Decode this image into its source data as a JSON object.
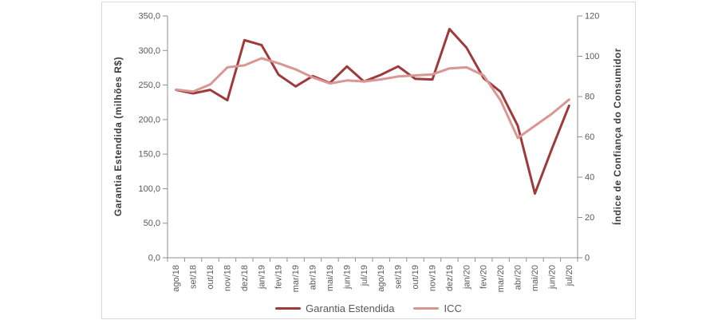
{
  "page": {
    "background": "#ffffff",
    "frame_border_color": "#d9d9d9",
    "axis_line_color": "#8f8f8f",
    "tick_text_color": "#595959"
  },
  "chart_data": {
    "type": "line",
    "categories": [
      "ago/18",
      "set/18",
      "out/18",
      "nov/18",
      "dez/18",
      "jan/19",
      "fev/19",
      "mar/19",
      "abr/19",
      "mai/19",
      "jun/19",
      "jul/19",
      "ago/19",
      "set/19",
      "out/19",
      "nov/19",
      "dez/19",
      "jan/20",
      "fev/20",
      "mar/20",
      "abr/20",
      "mai/20",
      "jun/20",
      "jul/20"
    ],
    "series": [
      {
        "name": "Garantia Estendida",
        "axis": "left",
        "color": "#9e3a39",
        "values": [
          243,
          238,
          243,
          228,
          315,
          308,
          265,
          248,
          263,
          253,
          277,
          255,
          265,
          277,
          259,
          258,
          331,
          304,
          260,
          240,
          191,
          93,
          158,
          220
        ]
      },
      {
        "name": "ICC",
        "axis": "right",
        "color": "#d99694",
        "values": [
          83.5,
          82.5,
          86,
          94.5,
          95.5,
          99,
          96.5,
          93.5,
          89.5,
          86.5,
          88,
          87.5,
          88.5,
          90,
          90.5,
          91,
          94,
          94.5,
          90.5,
          78,
          59.5,
          65.5,
          71.5,
          78.5
        ]
      }
    ],
    "left_axis": {
      "title": "Garantia Estendida (milhões R$)",
      "min": 0,
      "max": 350,
      "step": 50,
      "tick_labels": [
        "0,0",
        "50,0",
        "100,0",
        "150,0",
        "200,0",
        "250,0",
        "300,0",
        "350,0"
      ]
    },
    "right_axis": {
      "title": "Índice de Confiança do Consumidor",
      "min": 0,
      "max": 120,
      "step": 20,
      "tick_labels": [
        "0",
        "20",
        "40",
        "60",
        "80",
        "100",
        "120"
      ]
    },
    "legend": [
      {
        "label": "Garantia Estendida",
        "color": "#9e3a39"
      },
      {
        "label": "ICC",
        "color": "#d99694"
      }
    ],
    "legend_position": "bottom",
    "grid": false
  }
}
